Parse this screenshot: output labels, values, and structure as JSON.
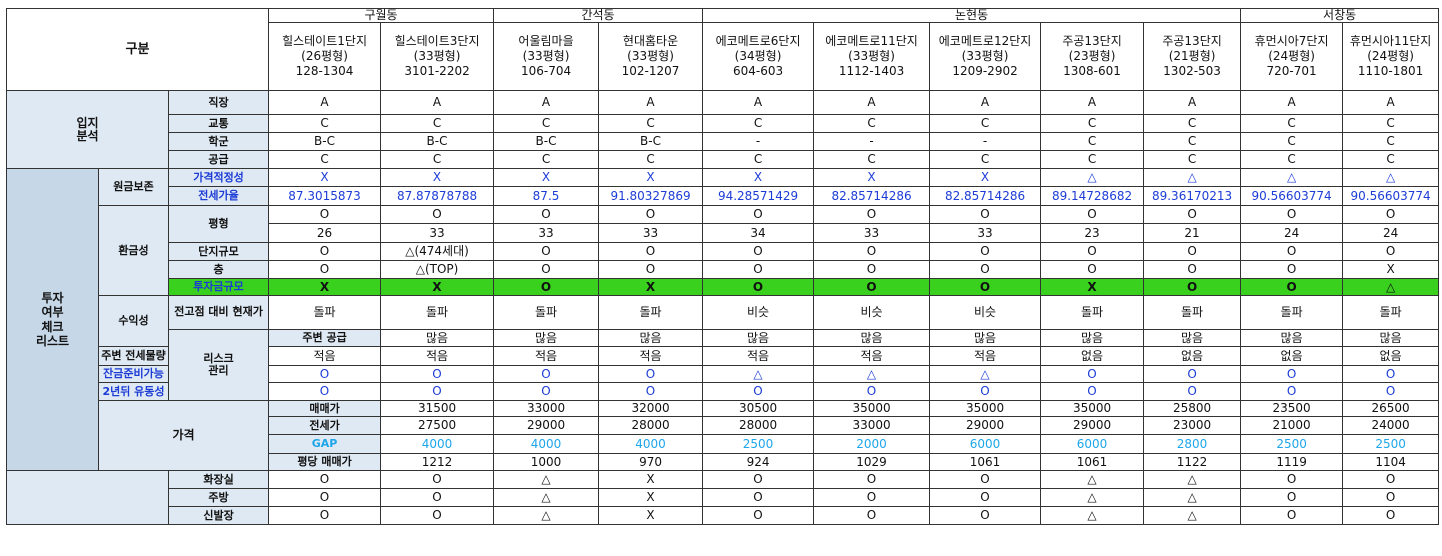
{
  "header": {
    "corner_label": "구분",
    "groups": [
      {
        "name": "구월동",
        "span": 2
      },
      {
        "name": "간석동",
        "span": 2
      },
      {
        "name": "논현동",
        "span": 5
      },
      {
        "name": "서창동",
        "span": 2
      }
    ],
    "complexes": [
      {
        "name": "힐스테이트1단지",
        "size": "(26평형)",
        "unit": "128-1304"
      },
      {
        "name": "힐스테이트3단지",
        "size": "(33평형)",
        "unit": "3101-2202"
      },
      {
        "name": "어울림마을",
        "size": "(33평형)",
        "unit": "106-704"
      },
      {
        "name": "현대홈타운",
        "size": "(33평형)",
        "unit": "102-1207"
      },
      {
        "name": "에코메트로6단지",
        "size": "(34평형)",
        "unit": "604-603"
      },
      {
        "name": "에코메트로11단지",
        "size": "(33평형)",
        "unit": "1112-1403"
      },
      {
        "name": "에코메트로12단지",
        "size": "(33평형)",
        "unit": "1209-2902"
      },
      {
        "name": "주공13단지",
        "size": "(23평형)",
        "unit": "1308-601"
      },
      {
        "name": "주공13단지",
        "size": "(21평형)",
        "unit": "1302-503"
      },
      {
        "name": "휴먼시아7단지",
        "size": "(24평형)",
        "unit": "720-701"
      },
      {
        "name": "휴먼시아11단지",
        "size": "(24평형)",
        "unit": "1110-1801"
      }
    ]
  },
  "sections": {
    "location": "입지\n분석",
    "invest": "투자\n여부\n체크\n리스트",
    "price": "가격",
    "principal": "원금보존",
    "liquidity": "환금성",
    "profit": "수익성",
    "risk": "리스크\n관리"
  },
  "rows": [
    {
      "label": "직장",
      "values": [
        "A",
        "A",
        "A",
        "A",
        "A",
        "A",
        "A",
        "A",
        "A",
        "A",
        "A"
      ]
    },
    {
      "label": "교통",
      "values": [
        "C",
        "C",
        "C",
        "C",
        "C",
        "C",
        "C",
        "C",
        "C",
        "C",
        "C"
      ]
    },
    {
      "label": "학군",
      "values": [
        "B-C",
        "B-C",
        "B-C",
        "B-C",
        "-",
        "-",
        "-",
        "C",
        "C",
        "C",
        "C"
      ]
    },
    {
      "label": "공급",
      "values": [
        "C",
        "C",
        "C",
        "C",
        "C",
        "C",
        "C",
        "C",
        "C",
        "C",
        "C"
      ]
    },
    {
      "label": "가격적정성",
      "values": [
        "X",
        "X",
        "X",
        "X",
        "X",
        "X",
        "X",
        "△",
        "△",
        "△",
        "△"
      ]
    },
    {
      "label": "전세가율",
      "values": [
        "87.3015873",
        "87.87878788",
        "87.5",
        "91.80327869",
        "94.28571429",
        "82.85714286",
        "82.85714286",
        "89.14728682",
        "89.36170213",
        "90.56603774",
        "90.56603774"
      ]
    },
    {
      "label": "평형",
      "values": [
        "O",
        "O",
        "O",
        "O",
        "O",
        "O",
        "O",
        "O",
        "O",
        "O",
        "O"
      ]
    },
    {
      "label": "",
      "values": [
        "26",
        "33",
        "33",
        "33",
        "34",
        "33",
        "33",
        "23",
        "21",
        "24",
        "24"
      ]
    },
    {
      "label": "단지규모",
      "values": [
        "O",
        "△(474세대)",
        "O",
        "O",
        "O",
        "O",
        "O",
        "O",
        "O",
        "O",
        "O"
      ]
    },
    {
      "label": "층",
      "values": [
        "O",
        "△(TOP)",
        "O",
        "O",
        "O",
        "O",
        "O",
        "O",
        "O",
        "O",
        "X"
      ]
    },
    {
      "label": "투자금규모",
      "values": [
        "X",
        "X",
        "O",
        "X",
        "O",
        "O",
        "O",
        "X",
        "O",
        "O",
        "△"
      ]
    },
    {
      "label": "전고점 대비 현재가",
      "values": [
        "돌파",
        "돌파",
        "돌파",
        "돌파",
        "비슷",
        "비슷",
        "비슷",
        "돌파",
        "돌파",
        "돌파",
        "돌파"
      ]
    },
    {
      "label": "주변 공급",
      "values": [
        "많음",
        "많음",
        "많음",
        "많음",
        "많음",
        "많음",
        "많음",
        "많음",
        "많음",
        "많음",
        "많음"
      ]
    },
    {
      "label": "주변 전세물량",
      "values": [
        "적음",
        "적음",
        "적음",
        "적음",
        "적음",
        "적음",
        "적음",
        "없음",
        "없음",
        "없음",
        "없음"
      ]
    },
    {
      "label": "잔금준비가능",
      "values": [
        "O",
        "O",
        "O",
        "O",
        "△",
        "△",
        "△",
        "O",
        "O",
        "O",
        "O"
      ]
    },
    {
      "label": "2년뒤 유동성",
      "values": [
        "O",
        "O",
        "O",
        "O",
        "O",
        "O",
        "O",
        "O",
        "O",
        "O",
        "O"
      ]
    },
    {
      "label": "매매가",
      "values": [
        "31500",
        "33000",
        "32000",
        "30500",
        "35000",
        "35000",
        "35000",
        "25800",
        "23500",
        "26500",
        "26500"
      ]
    },
    {
      "label": "전세가",
      "values": [
        "27500",
        "29000",
        "28000",
        "28000",
        "33000",
        "29000",
        "29000",
        "23000",
        "21000",
        "24000",
        "24000"
      ]
    },
    {
      "label": "GAP",
      "values": [
        "4000",
        "4000",
        "4000",
        "2500",
        "2000",
        "6000",
        "6000",
        "2800",
        "2500",
        "2500",
        "2500"
      ]
    },
    {
      "label": "평당 매매가",
      "values": [
        "1212",
        "1000",
        "970",
        "924",
        "1029",
        "1061",
        "1061",
        "1122",
        "1119",
        "1104",
        "1104"
      ]
    },
    {
      "label": "화장실",
      "values": [
        "O",
        "O",
        "△",
        "X",
        "O",
        "O",
        "O",
        "△",
        "△",
        "O",
        "O"
      ]
    },
    {
      "label": "주방",
      "values": [
        "O",
        "O",
        "△",
        "X",
        "O",
        "O",
        "O",
        "△",
        "△",
        "O",
        "O"
      ]
    },
    {
      "label": "신발장",
      "values": [
        "O",
        "O",
        "△",
        "X",
        "O",
        "O",
        "O",
        "△",
        "△",
        "O",
        "O"
      ]
    }
  ],
  "colors": {
    "section_bg": "#dfe9f3",
    "highlight_row": "#39d11e",
    "blue_text": "#1c3cd6",
    "gap_text": "#1ea6ea"
  }
}
